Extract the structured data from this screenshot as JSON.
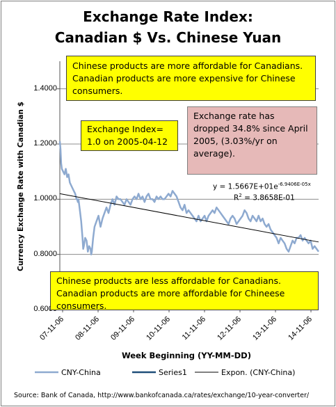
{
  "title_line1": "Exchange Rate Index:",
  "title_line2": "Canadian $ Vs. Chinese Yuan",
  "boxes": {
    "top": "Chinese products are more affordable for Canadians. Canadian products are more expensive for Chinese consumers.",
    "index": "Exchange Index= 1.0 on 2005-04-12",
    "drop": "Exchange rate has dropped 34.8% since April 2005, (3.03%/yr on average).",
    "bottom": "Chinese products are less affordable for Canadians.  Canadian products are more affordable for Chineese consumers."
  },
  "trend": {
    "equation_base": "y = 1.5667E+01e",
    "equation_exp": "-6.9406E-05x",
    "r2_prefix": "R",
    "r2_sup": "2",
    "r2_suffix": " = 3.8658E-01"
  },
  "source": "Source:   Bank of Canada, http://www.bankofcanada.ca/rates/exchange/10-year-converter/",
  "colors": {
    "series": "#8eaad0",
    "series1": "#1f4e79",
    "trend": "#000000",
    "grid": "#8c8c8c",
    "yellow": "#ffff00",
    "pink": "#e6b9b8"
  },
  "chart_data": {
    "type": "line",
    "title": "Exchange Rate Index: Canadian $ Vs. Chinese Yuan",
    "xlabel": "Week Beginning  (YY-MM-DD)",
    "ylabel": "Currency Exchange  Rate with Canadian  $",
    "ylim": [
      0.6,
      1.5
    ],
    "yticks": [
      "0.6000",
      "0.8000",
      "1.0000",
      "1.2000",
      "1.4000"
    ],
    "xticks": [
      "07-11-06",
      "08-11-06",
      "09-11-06",
      "10-11-06",
      "11-11-06",
      "12-11-06",
      "13-11-06",
      "14-11-06"
    ],
    "legend": [
      "CNY-China",
      "Series1",
      "Expon. (CNY-China)"
    ],
    "legend_position": "bottom",
    "grid": true,
    "series": [
      {
        "name": "CNY-China",
        "x_week": [
          0,
          1,
          2,
          3,
          5,
          7,
          9,
          11,
          13,
          15,
          17,
          19,
          21,
          23,
          25,
          26,
          27,
          28,
          29,
          30,
          32,
          34,
          35,
          36,
          38,
          40,
          42,
          44,
          46,
          47,
          48,
          50,
          52,
          55,
          58,
          61,
          64,
          67,
          70,
          73,
          76,
          79,
          82,
          85,
          88,
          91,
          94,
          97,
          100,
          103,
          106,
          109,
          112,
          115,
          118,
          121,
          124,
          127,
          130,
          133,
          136,
          139,
          142,
          145,
          148,
          151,
          154,
          157,
          160,
          163,
          166,
          169,
          172,
          175,
          178,
          181,
          184,
          187,
          190,
          193,
          196,
          199,
          202,
          205,
          208,
          211,
          214,
          217,
          220,
          223,
          226,
          229,
          232,
          235,
          238,
          241,
          244,
          247,
          250,
          253,
          256,
          259,
          262,
          265,
          268,
          271,
          274,
          277,
          280,
          283,
          286,
          289,
          292,
          295,
          298,
          301,
          304,
          307,
          310,
          313,
          316,
          319,
          322,
          325,
          328,
          331,
          334,
          337,
          340,
          343,
          346,
          349,
          352,
          355,
          358,
          361,
          364,
          367,
          370,
          373,
          376,
          379,
          382,
          385,
          388,
          391,
          394,
          397,
          400,
          403,
          406,
          409,
          412,
          415,
          418,
          421,
          424,
          427,
          430,
          433,
          436,
          439,
          442,
          445,
          448,
          451,
          454,
          457,
          460,
          463,
          466,
          469,
          472,
          475,
          478,
          481,
          484,
          487,
          490,
          493,
          496,
          499,
          502,
          505
        ],
        "values": [
          1.21,
          1.18,
          1.13,
          1.11,
          1.1,
          1.09,
          1.11,
          1.08,
          1.09,
          1.06,
          1.05,
          1.04,
          1.03,
          1.02,
          1.0,
          1.0,
          0.99,
          1.0,
          0.98,
          0.96,
          0.92,
          0.86,
          0.82,
          0.83,
          0.86,
          0.85,
          0.81,
          0.83,
          0.82,
          0.8,
          0.81,
          0.86,
          0.9,
          0.92,
          0.94,
          0.9,
          0.93,
          0.95,
          0.97,
          0.95,
          0.98,
          1.0,
          0.98,
          1.01,
          1.0,
          1.0,
          0.99,
          0.98,
          1.0,
          0.99,
          0.98,
          1.0,
          1.01,
          1.0,
          1.02,
          1.0,
          1.01,
          0.99,
          1.01,
          1.02,
          1.0,
          1.0,
          0.99,
          1.01,
          1.0,
          1.01,
          1.0,
          1.0,
          1.01,
          1.02,
          1.01,
          1.03,
          1.02,
          1.01,
          0.99,
          0.97,
          0.96,
          0.98,
          0.95,
          0.96,
          0.95,
          0.94,
          0.93,
          0.92,
          0.94,
          0.92,
          0.93,
          0.94,
          0.92,
          0.94,
          0.95,
          0.96,
          0.95,
          0.97,
          0.96,
          0.95,
          0.94,
          0.93,
          0.92,
          0.91,
          0.93,
          0.94,
          0.93,
          0.91,
          0.92,
          0.93,
          0.94,
          0.96,
          0.95,
          0.93,
          0.92,
          0.94,
          0.93,
          0.92,
          0.94,
          0.92,
          0.93,
          0.91,
          0.9,
          0.91,
          0.89,
          0.88,
          0.87,
          0.86,
          0.84,
          0.86,
          0.85,
          0.84,
          0.82,
          0.81,
          0.83,
          0.85,
          0.84,
          0.86,
          0.86,
          0.87,
          0.85,
          0.86,
          0.85,
          0.84,
          0.85,
          0.82,
          0.83,
          0.82,
          0.81,
          0.82,
          0.81,
          0.82,
          0.8,
          0.78,
          0.76,
          0.75,
          0.74,
          0.74,
          0.75,
          0.74,
          0.75,
          0.74,
          0.73,
          0.74,
          0.74,
          0.73,
          0.74,
          0.73,
          0.73,
          0.74,
          0.73,
          0.73,
          0.73,
          0.73,
          0.74,
          0.73,
          0.74,
          0.73,
          0.72,
          0.73,
          0.73,
          0.72,
          0.73,
          0.73,
          0.72,
          0.73,
          0.73,
          0.73
        ],
        "x_range_weeks": [
          0,
          388
        ]
      },
      {
        "name": "Series1",
        "values": []
      },
      {
        "name": "Expon. (CNY-China)",
        "x_week": [
          0,
          388
        ],
        "values": [
          1.02,
          0.845
        ]
      }
    ]
  }
}
